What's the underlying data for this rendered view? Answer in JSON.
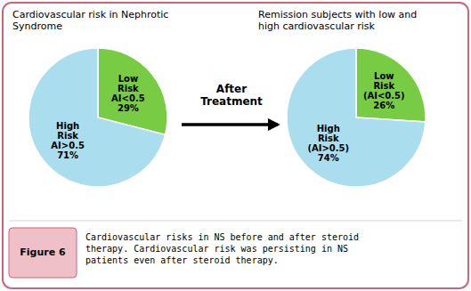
{
  "chart_data": [
    {
      "type": "pie",
      "title": "Cardiovascular risk in Nephrotic\nSyndrome",
      "categories": [
        "Low\nRisk\nAI<0.5",
        "High\nRisk\nAI>0.5"
      ],
      "values": [
        29,
        71
      ],
      "value_labels": [
        "29%",
        "71%"
      ],
      "data_labels": true,
      "colors": [
        "#77cc44",
        "#aaddee"
      ],
      "annotations": [
        "After\nTreatment",
        "Figure 6",
        "Cardiovascular risks in NS before and after steroid\ntherapy. Cardiovascular risk was persisting in NS\npatients even after steroid therapy."
      ]
    },
    {
      "type": "pie",
      "title": "Remission subjects with low and\nhigh cardiovascular risk",
      "categories": [
        "Low\nRisk\n(AI<0.5)",
        "High\nRisk\n(AI>0.5)"
      ],
      "values": [
        26,
        74
      ],
      "value_labels": [
        "26%",
        "74%"
      ],
      "data_labels": true,
      "colors": [
        "#77cc44",
        "#aaddee"
      ]
    }
  ]
}
